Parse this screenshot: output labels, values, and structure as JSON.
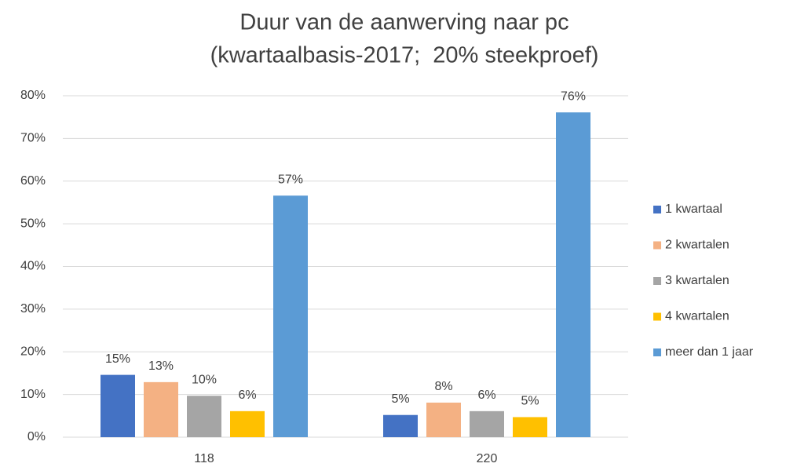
{
  "chart_data": {
    "type": "bar",
    "title": "Duur van de aanwerving naar pc",
    "subtitle": "(kwartaalbasis-2017;  20% steekproef)",
    "categories": [
      "118",
      "220"
    ],
    "series": [
      {
        "name": "1 kwartaal",
        "color": "#4472c4",
        "values": [
          14.6,
          5.2
        ],
        "value_labels": [
          "15%",
          "5%"
        ]
      },
      {
        "name": "2 kwartalen",
        "color": "#f4b183",
        "values": [
          12.9,
          8.1
        ],
        "value_labels": [
          "13%",
          "8%"
        ]
      },
      {
        "name": "3 kwartalen",
        "color": "#a5a5a5",
        "values": [
          9.7,
          6.1
        ],
        "value_labels": [
          "10%",
          "6%"
        ]
      },
      {
        "name": "4 kwartalen",
        "color": "#ffc000",
        "values": [
          6.1,
          4.7
        ],
        "value_labels": [
          "6%",
          "5%"
        ]
      },
      {
        "name": "meer dan 1 jaar",
        "color": "#5b9bd5",
        "values": [
          56.6,
          76.1
        ],
        "value_labels": [
          "57%",
          "76%"
        ]
      }
    ],
    "ylim": [
      0,
      80
    ],
    "yticks": [
      {
        "value": 0,
        "label": "0%"
      },
      {
        "value": 10,
        "label": "10%"
      },
      {
        "value": 20,
        "label": "20%"
      },
      {
        "value": 30,
        "label": "30%"
      },
      {
        "value": 40,
        "label": "40%"
      },
      {
        "value": 50,
        "label": "50%"
      },
      {
        "value": 60,
        "label": "60%"
      },
      {
        "value": 70,
        "label": "70%"
      },
      {
        "value": 80,
        "label": "80%"
      }
    ],
    "grid": true,
    "legend": "right"
  }
}
